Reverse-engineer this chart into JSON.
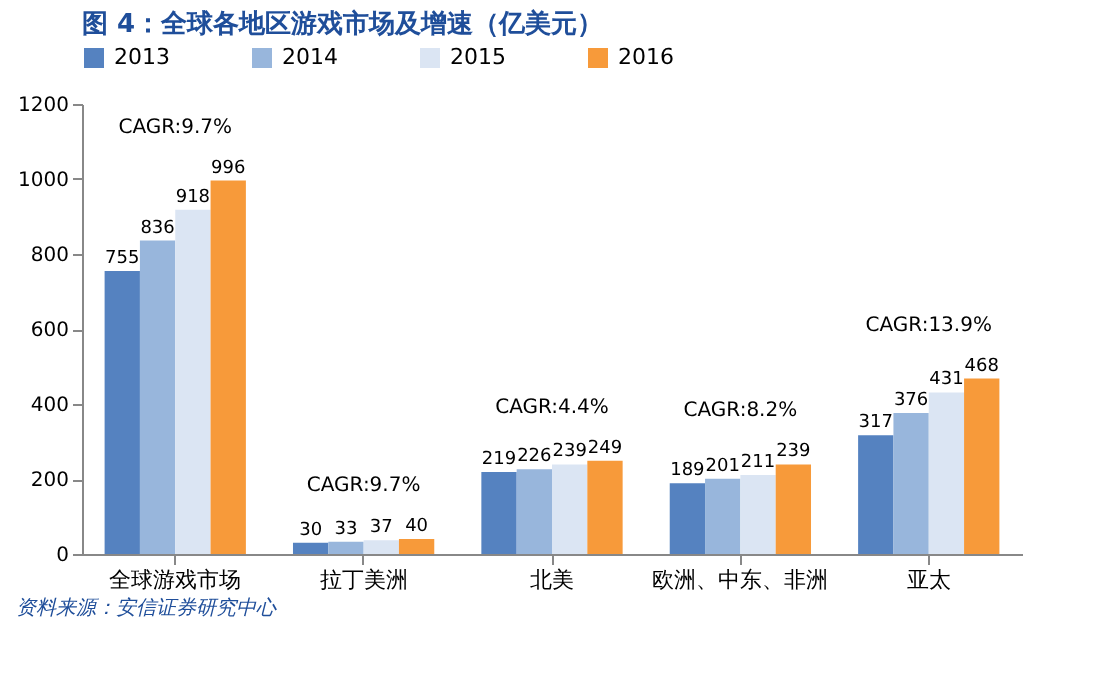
{
  "chart_data": {
    "type": "bar",
    "title": "图 4：全球各地区游戏市场及增速（亿美元）",
    "categories": [
      "全球游戏市场",
      "拉丁美洲",
      "北美",
      "欧洲、中东、非洲",
      "亚太"
    ],
    "series": [
      {
        "name": "2013",
        "color": "#5582c0",
        "values": [
          755,
          30,
          219,
          189,
          317
        ]
      },
      {
        "name": "2014",
        "color": "#98b6dc",
        "values": [
          836,
          33,
          226,
          201,
          376
        ]
      },
      {
        "name": "2015",
        "color": "#dbe5f3",
        "values": [
          918,
          37,
          239,
          211,
          431
        ]
      },
      {
        "name": "2016",
        "color": "#f79a3a",
        "values": [
          996,
          40,
          249,
          239,
          468
        ]
      }
    ],
    "ylim": [
      0,
      1200
    ],
    "yticks": [
      0,
      200,
      400,
      600,
      800,
      1000,
      1200
    ],
    "data_labels": true,
    "legend": "top",
    "grid": false,
    "annotations": [
      "CAGR:9.7%",
      "CAGR:9.7%",
      "CAGR:4.4%",
      "CAGR:8.2%",
      "CAGR:13.9%",
      "资料来源：安信证券研究中心"
    ]
  }
}
